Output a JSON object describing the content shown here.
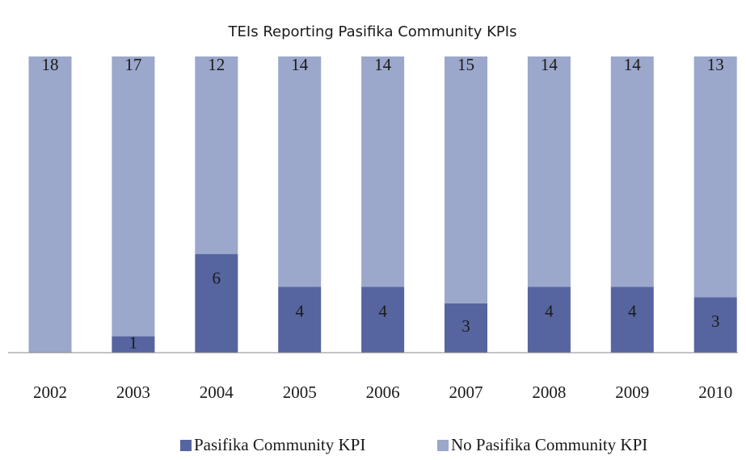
{
  "chart_data": {
    "type": "bar",
    "stacking": "percent",
    "title": "TEIs Reporting Pasifika Community KPIs",
    "categories": [
      "2002",
      "2003",
      "2004",
      "2005",
      "2006",
      "2007",
      "2008",
      "2009",
      "2010"
    ],
    "series": [
      {
        "name": "Pasifika Community KPI",
        "color": "#56659f",
        "values": [
          null,
          1,
          6,
          4,
          4,
          3,
          4,
          4,
          3
        ]
      },
      {
        "name": "No Pasifika Community KPI",
        "color": "#9ba7cb",
        "values": [
          18,
          17,
          12,
          14,
          14,
          15,
          14,
          14,
          13
        ]
      }
    ],
    "legend": "bottom"
  }
}
